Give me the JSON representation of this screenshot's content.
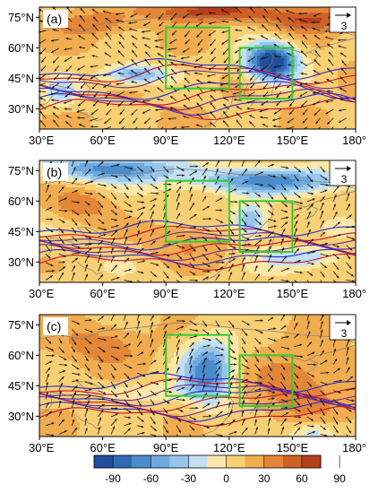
{
  "panels": [
    {
      "label": "(a)",
      "reference_vector_value": "3",
      "lat_ticks": [
        "75°N",
        "60°N",
        "45°N",
        "30°N"
      ],
      "lon_ticks": [
        "30°E",
        "60°E",
        "90°E",
        "120°E",
        "150°E",
        "180°"
      ],
      "field_pattern": "a"
    },
    {
      "label": "(b)",
      "reference_vector_value": "3",
      "lat_ticks": [
        "75°N",
        "60°N",
        "45°N",
        "30°N"
      ],
      "lon_ticks": [
        "30°E",
        "60°E",
        "90°E",
        "120°E",
        "150°E",
        "180°"
      ],
      "field_pattern": "b"
    },
    {
      "label": "(c)",
      "reference_vector_value": "3",
      "lat_ticks": [
        "75°N",
        "60°N",
        "45°N",
        "30°N"
      ],
      "lon_ticks": [
        "30°E",
        "60°E",
        "90°E",
        "120°E",
        "150°E",
        "180°"
      ],
      "field_pattern": "c"
    }
  ],
  "colorbar": {
    "labels": [
      "-90",
      "-60",
      "-30",
      "0",
      "30",
      "60",
      "90"
    ],
    "colors": [
      "#1f4e9c",
      "#2e6bb5",
      "#4a8ccc",
      "#6fa9dd",
      "#98c6e9",
      "#c3e0f2",
      "#fbe8a8",
      "#f7cf74",
      "#f0ac4f",
      "#e38637",
      "#cf6126",
      "#b3401b"
    ]
  },
  "map": {
    "lon_range": [
      30,
      180
    ],
    "lat_range": [
      20,
      80
    ],
    "boxes": [
      {
        "lon": [
          90,
          120
        ],
        "lat": [
          40,
          70
        ]
      },
      {
        "lon": [
          125,
          150
        ],
        "lat": [
          35,
          60
        ]
      }
    ],
    "box_color": "#32cd32",
    "jet_colors": [
      "#c8102e",
      "#2a2ad1",
      "#6a2c91"
    ]
  }
}
